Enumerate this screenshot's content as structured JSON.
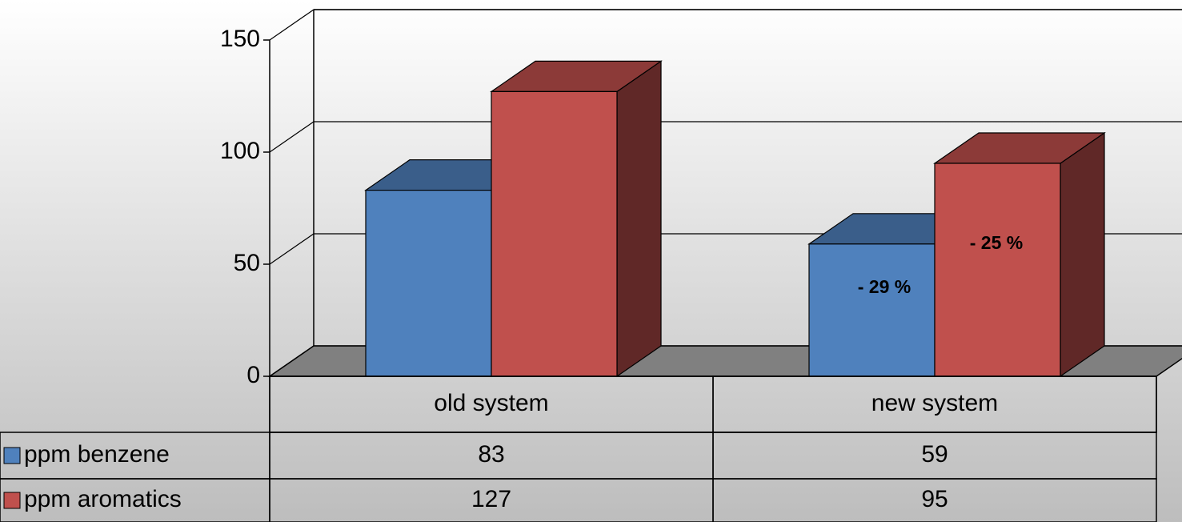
{
  "chart_data": {
    "type": "bar3d",
    "categories": [
      "old system",
      "new system"
    ],
    "series": [
      {
        "name": "ppm benzene",
        "color": "#4f81bd",
        "values": [
          83,
          59
        ]
      },
      {
        "name": "ppm aromatics",
        "color": "#c0504d",
        "values": [
          127,
          95
        ]
      }
    ],
    "ylim": [
      0,
      150
    ],
    "yticks": [
      0,
      50,
      100,
      150
    ],
    "grid": true,
    "annotations": [
      "- 29 %",
      "- 25 %"
    ]
  }
}
